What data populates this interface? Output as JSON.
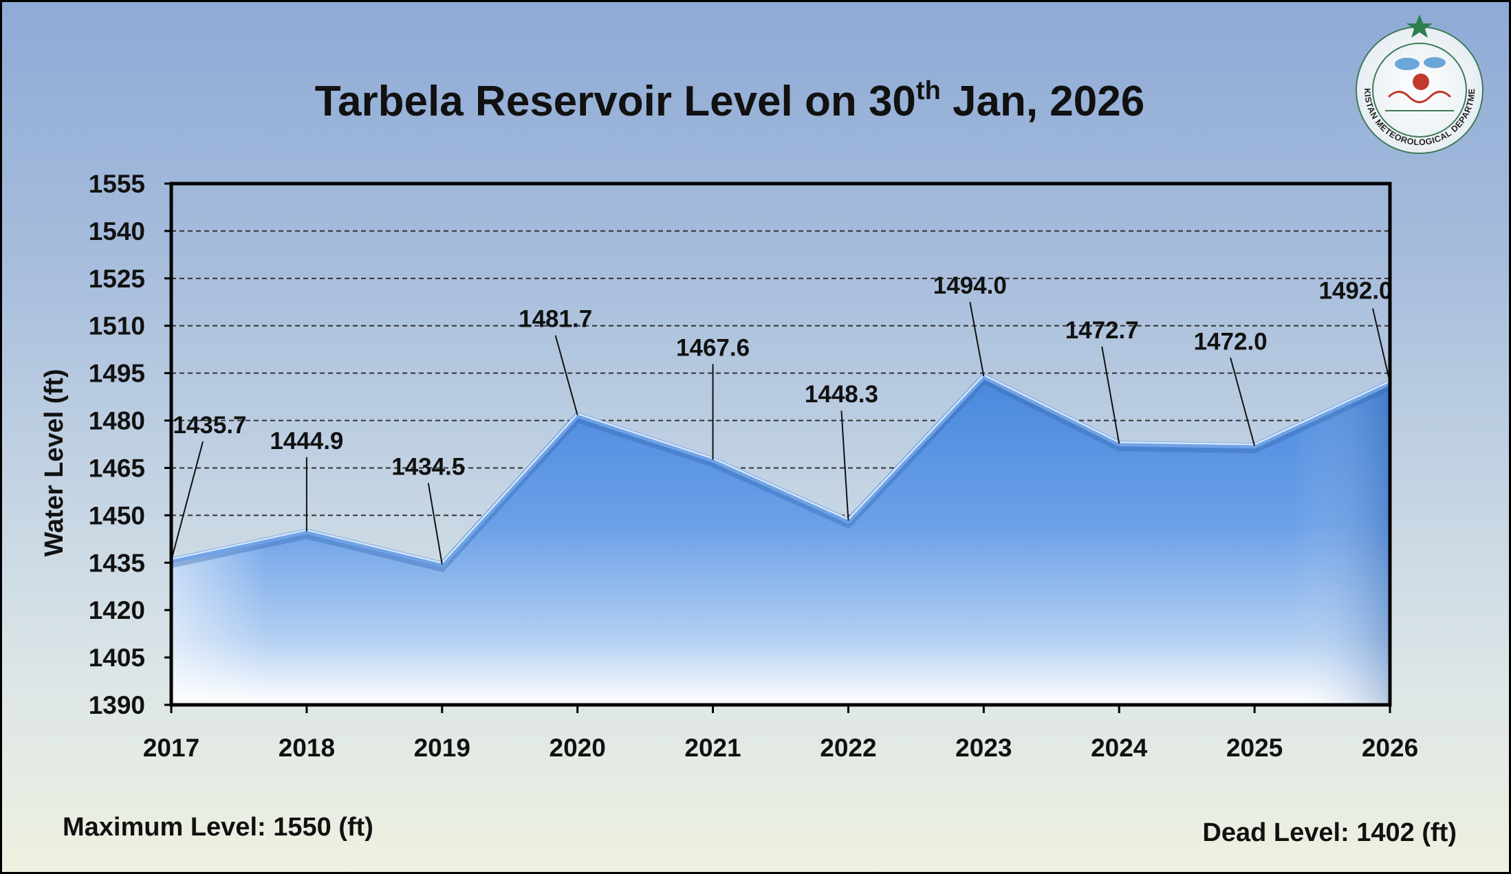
{
  "chart_data": {
    "type": "area",
    "title": "Tarbela Reservoir Level on 30",
    "title_sup": "th",
    "title_tail": " Jan, 2026",
    "ylabel": "Water Level (ft)",
    "xlabel": "",
    "categories": [
      "2017",
      "2018",
      "2019",
      "2020",
      "2021",
      "2022",
      "2023",
      "2024",
      "2025",
      "2026"
    ],
    "values": [
      1435.7,
      1444.9,
      1434.5,
      1481.7,
      1467.6,
      1448.3,
      1494.0,
      1472.7,
      1472.0,
      1492.0
    ],
    "data_labels": [
      "1435.7",
      "1444.9",
      "1434.5",
      "1481.7",
      "1467.6",
      "1448.3",
      "1494.0",
      "1472.7",
      "1472.0",
      "1492.0"
    ],
    "ylim": [
      1390,
      1555
    ],
    "yticks": [
      "1555",
      "1540",
      "1525",
      "1510",
      "1495",
      "1480",
      "1465",
      "1450",
      "1435",
      "1420",
      "1405",
      "1390"
    ],
    "grid": "horizontal dashed",
    "legend": "none",
    "colors": {
      "area_top": "#4f8fe0",
      "area_bottom": "#ffffff",
      "line": "#6fa3e6",
      "grid": "#333333",
      "text": "#111111"
    }
  },
  "footer": {
    "max_level": "Maximum Level: 1550 (ft)",
    "dead_level": "Dead Level: 1402 (ft)"
  },
  "emblem": {
    "name": "pakistan-meteorological-department-logo",
    "text": "PAKISTAN METEOROLOGICAL DEPARTMENT"
  }
}
